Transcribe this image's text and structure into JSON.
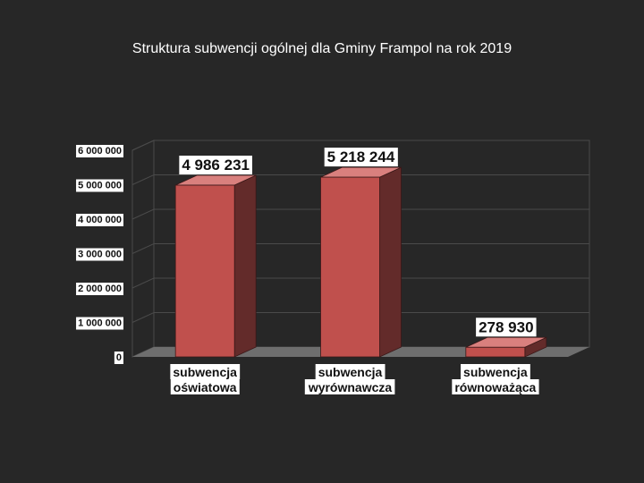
{
  "chart_data": {
    "type": "bar",
    "title": "Struktura subwencji ogólnej dla Gminy Frampol na rok 2019",
    "categories": [
      [
        "subwencja",
        "oświatowa"
      ],
      [
        "subwencja",
        "wyrównawcza"
      ],
      [
        "subwencja",
        "równoważąca"
      ]
    ],
    "values": [
      4986231,
      5218244,
      278930
    ],
    "data_labels": [
      "4 986 231",
      "5 218 244",
      "278 930"
    ],
    "y_ticks": [
      "0",
      "1 000 000",
      "2 000 000",
      "3 000 000",
      "4 000 000",
      "5 000 000",
      "6 000 000"
    ],
    "ylim": [
      0,
      6000000
    ],
    "grid": true,
    "colors": {
      "bar_front": "#c0504d",
      "bar_side": "#632b2a",
      "bar_top": "#d9807e",
      "floor": "#6e6e6e",
      "grid": "#4a4a4a",
      "label_bg": "#ffffff",
      "background": "#272727"
    }
  }
}
